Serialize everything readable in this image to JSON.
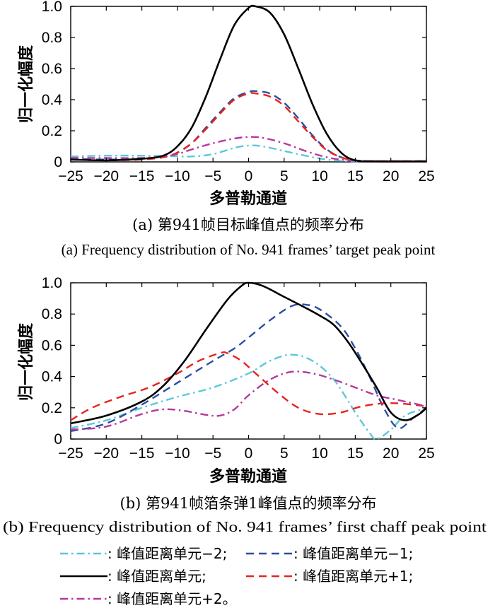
{
  "colors": {
    "minus2": "#5bc8d8",
    "minus1": "#2b4ea2",
    "center": "#000000",
    "plus1": "#e8231f",
    "plus2": "#b5399c"
  },
  "chart_data": [
    {
      "type": "line",
      "caption_cn": "(a) 第941帧目标峰值点的频率分布",
      "caption_en": "(a) Frequency distribution of No. 941 frames’ target peak point",
      "xlabel": "多普勒通道",
      "ylabel": "归一化幅度",
      "xlim": [
        -25,
        25
      ],
      "ylim": [
        0,
        1.0
      ],
      "xticks": [
        "−25",
        "−20",
        "−15",
        "−10",
        "−5",
        "0",
        "5",
        "10",
        "15",
        "20",
        "25"
      ],
      "yticks": [
        "0",
        "0.2",
        "0.4",
        "0.6",
        "0.8",
        "1.0"
      ],
      "grid": false,
      "series": [
        {
          "name": "峰值距离单元−2",
          "key": "minus2",
          "dash": "dashdot",
          "x": [
            -25,
            -20,
            -15,
            -12,
            -8,
            -5,
            -2,
            0,
            2,
            5,
            8,
            11,
            14,
            18,
            25
          ],
          "y": [
            0.035,
            0.04,
            0.04,
            0.038,
            0.035,
            0.05,
            0.09,
            0.105,
            0.1,
            0.07,
            0.04,
            0.015,
            0.005,
            0.003,
            0.003
          ]
        },
        {
          "name": "峰值距离单元−1",
          "key": "minus1",
          "dash": "dash",
          "x": [
            -25,
            -20,
            -15,
            -12,
            -10,
            -8,
            -6,
            -4,
            -2,
            0,
            1,
            3,
            5,
            7,
            9,
            11,
            13,
            15,
            18,
            25
          ],
          "y": [
            0.02,
            0.015,
            0.02,
            0.03,
            0.06,
            0.12,
            0.22,
            0.32,
            0.41,
            0.45,
            0.455,
            0.44,
            0.38,
            0.28,
            0.17,
            0.08,
            0.03,
            0.01,
            0.005,
            0.005
          ]
        },
        {
          "name": "峰值距离单元",
          "key": "center",
          "dash": "solid",
          "x": [
            -25,
            -20,
            -15,
            -12,
            -10,
            -8,
            -6,
            -4,
            -2,
            0,
            1,
            3,
            5,
            7,
            9,
            11,
            13,
            15,
            18,
            25
          ],
          "y": [
            0.015,
            0.01,
            0.02,
            0.04,
            0.1,
            0.22,
            0.42,
            0.66,
            0.88,
            0.99,
            1.0,
            0.96,
            0.82,
            0.6,
            0.37,
            0.18,
            0.06,
            0.01,
            0.003,
            0.003
          ]
        },
        {
          "name": "峰值距离单元+1",
          "key": "plus1",
          "dash": "dash",
          "x": [
            -25,
            -20,
            -15,
            -12,
            -10,
            -8,
            -6,
            -4,
            -2,
            0,
            1,
            3,
            5,
            7,
            9,
            11,
            13,
            15,
            18,
            25
          ],
          "y": [
            0.015,
            0.01,
            0.015,
            0.03,
            0.06,
            0.12,
            0.21,
            0.31,
            0.4,
            0.44,
            0.44,
            0.42,
            0.36,
            0.26,
            0.16,
            0.075,
            0.03,
            0.01,
            0.005,
            0.005
          ]
        },
        {
          "name": "峰值距离单元+2",
          "key": "plus2",
          "dash": "dashdot",
          "x": [
            -25,
            -20,
            -15,
            -12,
            -10,
            -8,
            -5,
            -2,
            0,
            2,
            5,
            8,
            11,
            14,
            18,
            25
          ],
          "y": [
            0.025,
            0.025,
            0.025,
            0.035,
            0.05,
            0.08,
            0.12,
            0.15,
            0.16,
            0.155,
            0.12,
            0.07,
            0.03,
            0.01,
            0.005,
            0.005
          ]
        }
      ]
    },
    {
      "type": "line",
      "caption_cn": "(b) 第941帧箔条弹1峰值点的频率分布",
      "caption_en": "(b) Frequency distribution of No. 941 frames’ first chaff peak point",
      "xlabel": "多普勒通道",
      "ylabel": "归一化幅度",
      "xlim": [
        -25,
        25
      ],
      "ylim": [
        0,
        1.0
      ],
      "xticks": [
        "−25",
        "−20",
        "−15",
        "−10",
        "−5",
        "0",
        "5",
        "10",
        "15",
        "20",
        "25"
      ],
      "yticks": [
        "0",
        "0.2",
        "0.4",
        "0.6",
        "0.8",
        "1.0"
      ],
      "grid": false,
      "series": [
        {
          "name": "峰值距离单元−2",
          "key": "minus2",
          "dash": "dashdot",
          "x": [
            -25,
            -20,
            -15,
            -10,
            -5,
            0,
            3,
            6,
            9,
            12,
            15,
            17,
            18,
            20,
            22,
            25
          ],
          "y": [
            0.07,
            0.12,
            0.2,
            0.27,
            0.33,
            0.42,
            0.5,
            0.54,
            0.5,
            0.38,
            0.17,
            0.04,
            0.0,
            0.06,
            0.15,
            0.2
          ]
        },
        {
          "name": "峰值距离单元−1",
          "key": "minus1",
          "dash": "dash",
          "x": [
            -25,
            -20,
            -15,
            -10,
            -5,
            -2,
            0,
            3,
            6,
            8,
            10,
            13,
            15,
            17,
            19,
            21,
            23,
            25
          ],
          "y": [
            0.05,
            0.1,
            0.22,
            0.36,
            0.5,
            0.58,
            0.65,
            0.76,
            0.85,
            0.86,
            0.83,
            0.72,
            0.58,
            0.4,
            0.2,
            0.07,
            0.13,
            0.2
          ]
        },
        {
          "name": "峰值距离单元",
          "key": "center",
          "dash": "solid",
          "x": [
            -25,
            -20,
            -15,
            -12,
            -9,
            -6,
            -3,
            -1,
            0,
            2,
            5,
            8,
            10,
            12,
            14,
            16,
            18,
            20,
            22,
            24,
            25
          ],
          "y": [
            0.1,
            0.15,
            0.24,
            0.34,
            0.5,
            0.7,
            0.89,
            0.98,
            1.0,
            0.98,
            0.91,
            0.84,
            0.79,
            0.73,
            0.62,
            0.48,
            0.33,
            0.17,
            0.12,
            0.16,
            0.2
          ]
        },
        {
          "name": "峰值距离单元+1",
          "key": "plus1",
          "dash": "dash",
          "x": [
            -25,
            -22,
            -18,
            -14,
            -10,
            -7,
            -4,
            -3,
            -1,
            1,
            4,
            7,
            10,
            13,
            16,
            20,
            25
          ],
          "y": [
            0.12,
            0.2,
            0.27,
            0.33,
            0.42,
            0.5,
            0.55,
            0.55,
            0.5,
            0.42,
            0.3,
            0.2,
            0.16,
            0.17,
            0.21,
            0.23,
            0.21
          ]
        },
        {
          "name": "峰值距离单元+2",
          "key": "plus2",
          "dash": "dashdot",
          "x": [
            -25,
            -20,
            -15,
            -12,
            -9,
            -6,
            -4,
            -2,
            0,
            3,
            6,
            9,
            12,
            15,
            18,
            21,
            25
          ],
          "y": [
            0.06,
            0.08,
            0.16,
            0.19,
            0.18,
            0.155,
            0.15,
            0.19,
            0.28,
            0.38,
            0.43,
            0.42,
            0.38,
            0.33,
            0.28,
            0.25,
            0.21
          ]
        }
      ]
    }
  ],
  "legend": [
    {
      "key": "minus2",
      "dash": "dashdot",
      "label": ": 峰值距离单元−2;"
    },
    {
      "key": "minus1",
      "dash": "dash",
      "label": ": 峰值距离单元−1;"
    },
    {
      "key": "center",
      "dash": "solid",
      "label": ": 峰值距离单元;"
    },
    {
      "key": "plus1",
      "dash": "dash",
      "label": ": 峰值距离单元+1;"
    },
    {
      "key": "plus2",
      "dash": "dashdot",
      "label": ": 峰值距离单元+2。"
    }
  ]
}
